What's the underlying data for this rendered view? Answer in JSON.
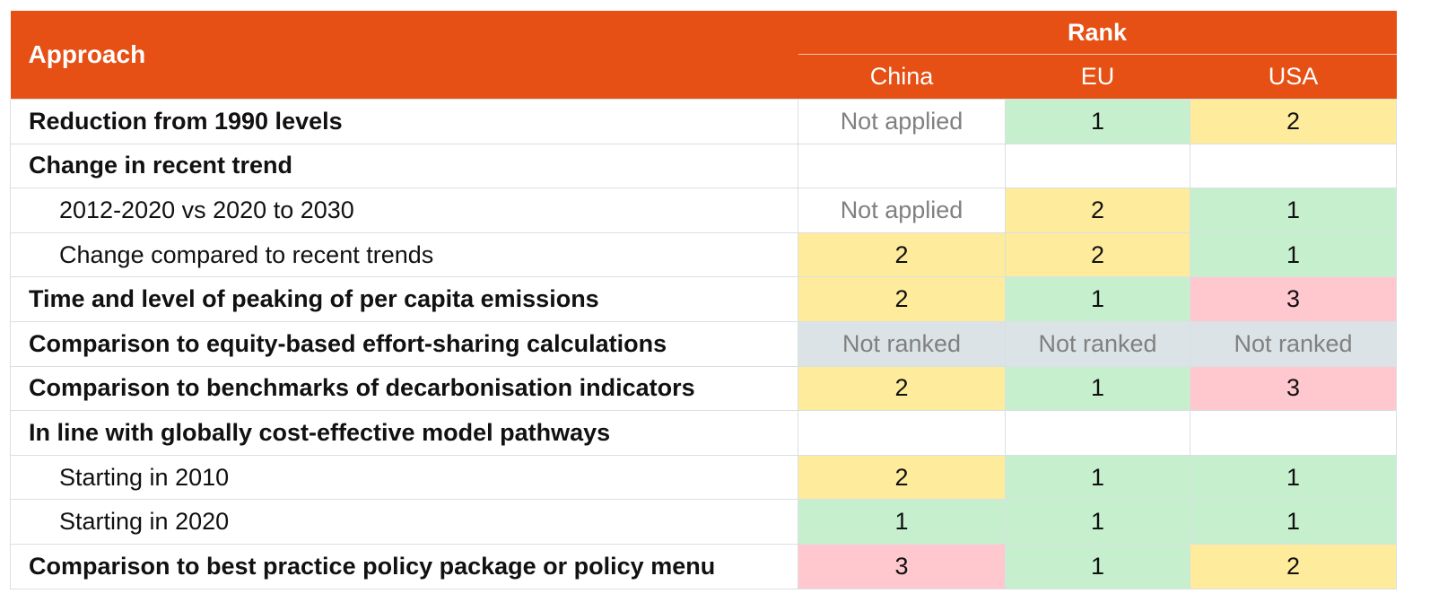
{
  "header": {
    "approach": "Approach",
    "rank": "Rank",
    "countries": [
      "China",
      "EU",
      "USA"
    ]
  },
  "rows": [
    {
      "label": "Reduction from 1990 levels",
      "style": "bold",
      "values": [
        "Not applied",
        "1",
        "2"
      ]
    },
    {
      "label": "Change in recent trend",
      "style": "bold",
      "values": [
        "",
        "",
        ""
      ]
    },
    {
      "label": "2012-2020 vs 2020 to 2030",
      "style": "indent",
      "values": [
        "Not applied",
        "2",
        "1"
      ]
    },
    {
      "label": "Change compared to recent trends",
      "style": "indent",
      "values": [
        "2",
        "2",
        "1"
      ]
    },
    {
      "label": "Time and level of peaking of per capita emissions",
      "style": "bold",
      "values": [
        "2",
        "1",
        "3"
      ]
    },
    {
      "label": "Comparison to equity-based effort-sharing calculations",
      "style": "bold",
      "values": [
        "Not ranked",
        "Not ranked",
        "Not ranked"
      ]
    },
    {
      "label": "Comparison to benchmarks of decarbonisation indicators",
      "style": "bold",
      "values": [
        "2",
        "1",
        "3"
      ]
    },
    {
      "label": "In line with globally cost-effective model pathways",
      "style": "bold",
      "values": [
        "",
        "",
        ""
      ]
    },
    {
      "label": "Starting in 2010",
      "style": "indent",
      "values": [
        "2",
        "1",
        "1"
      ]
    },
    {
      "label": "Starting in 2020",
      "style": "indent",
      "values": [
        "1",
        "1",
        "1"
      ]
    },
    {
      "label": "Comparison to best practice policy package or policy menu",
      "style": "bold",
      "values": [
        "3",
        "1",
        "2"
      ]
    }
  ],
  "colors": {
    "header": "#e65014",
    "rank_1": "#c6efce",
    "rank_2": "#ffeb9c",
    "rank_3": "#ffc7ce",
    "not_ranked": "#dce3e6",
    "muted_text": "#808080"
  }
}
